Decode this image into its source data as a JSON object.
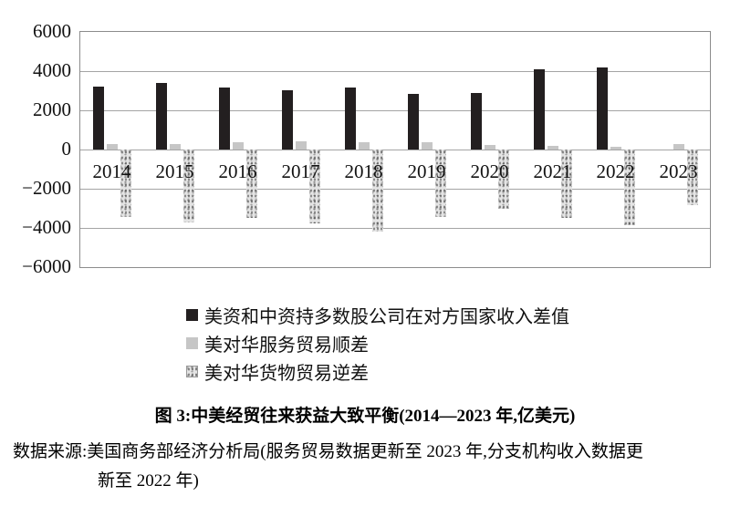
{
  "figure": {
    "caption": "图 3:中美经贸往来获益大致平衡(2014—2023 年,亿美元)",
    "source_line1": "数据来源:美国商务部经济分析局(服务贸易数据更新至 2023 年,分支机构收入数据更",
    "source_line2": "新至 2022 年)"
  },
  "chart_data": {
    "type": "bar",
    "title": "中美经贸往来获益大致平衡(2014—2023 年,亿美元)",
    "unit": "亿美元",
    "categories": [
      "2014",
      "2015",
      "2016",
      "2017",
      "2018",
      "2019",
      "2020",
      "2021",
      "2022",
      "2023"
    ],
    "series": [
      {
        "name": "美资和中资持多数股公司在对方国家收入差值",
        "color": "#231f20",
        "pattern": "solid",
        "values": [
          3200,
          3400,
          3150,
          3000,
          3150,
          2850,
          2900,
          4100,
          4200,
          null
        ]
      },
      {
        "name": "美对华服务贸易顺差",
        "color": "#c6c6c6",
        "pattern": "solid",
        "values": [
          280,
          300,
          380,
          400,
          390,
          360,
          250,
          180,
          150,
          290
        ]
      },
      {
        "name": "美对华货物贸易逆差",
        "color": "#e4e4e4",
        "pattern": "speckled",
        "values": [
          -3450,
          -3700,
          -3500,
          -3780,
          -4200,
          -3430,
          -3030,
          -3490,
          -3850,
          -2860
        ]
      }
    ],
    "ylim": [
      -6000,
      6000
    ],
    "y_ticks": [
      6000,
      4000,
      2000,
      0,
      -2000,
      -4000,
      -6000
    ],
    "grid": true,
    "legend_position": "bottom-left"
  }
}
